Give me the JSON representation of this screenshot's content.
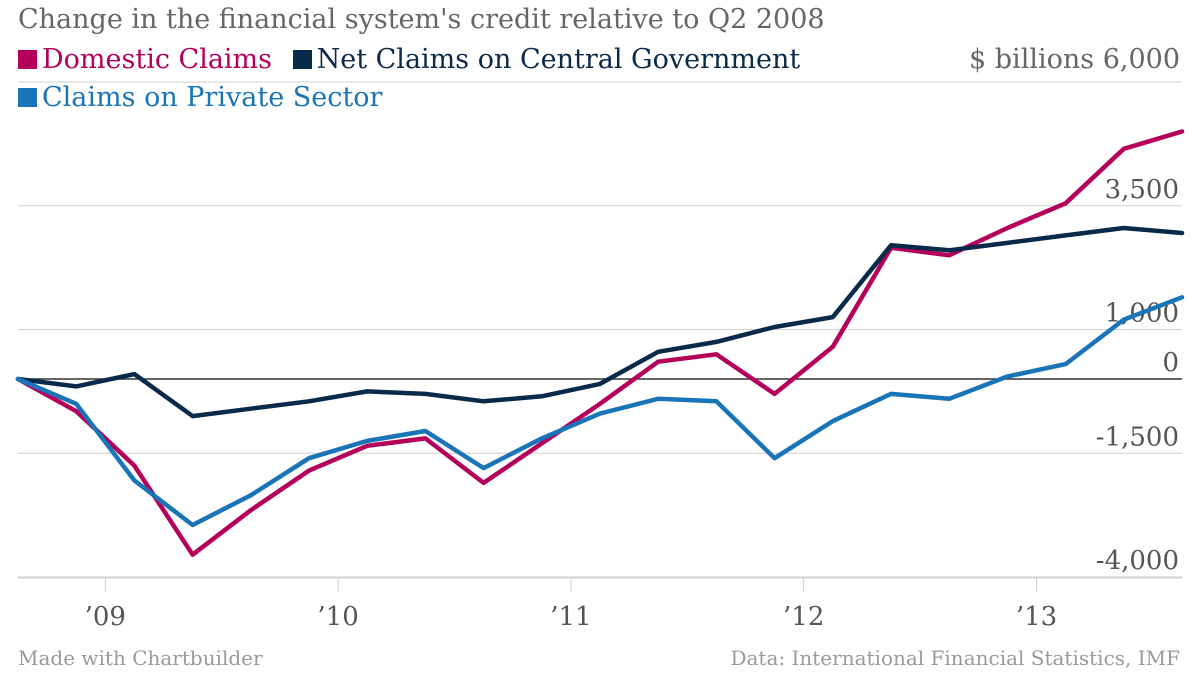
{
  "chart_data": {
    "type": "line",
    "title": "Change in the financial system's credit relative to Q2 2008",
    "unit_label": "$ billions",
    "x_ticks": [
      {
        "label": "’09",
        "t": 1.5
      },
      {
        "label": "’10",
        "t": 5.5
      },
      {
        "label": "’11",
        "t": 9.5
      },
      {
        "label": "’12",
        "t": 13.5
      },
      {
        "label": "’13",
        "t": 17.5
      }
    ],
    "y_ticks": [
      {
        "label": "6,000",
        "value": 6000
      },
      {
        "label": "3,500",
        "value": 3500
      },
      {
        "label": "1,000",
        "value": 1000
      },
      {
        "label": "0",
        "value": 0
      },
      {
        "label": "-1,500",
        "value": -1500
      },
      {
        "label": "-4,000",
        "value": -4000
      }
    ],
    "ylim": [
      -4000,
      6000
    ],
    "grid": true,
    "legend_position": "top-left",
    "series": [
      {
        "name": "Domestic Claims",
        "color": "#b5005b",
        "values": [
          0,
          -650,
          -1750,
          -3550,
          -2650,
          -1850,
          -1350,
          -1200,
          -2100,
          -1300,
          -500,
          350,
          500,
          -300,
          650,
          2650,
          2500,
          3050,
          3550,
          4650,
          5000
        ]
      },
      {
        "name": "Net Claims on Central Government",
        "color": "#0a2a4a",
        "values": [
          0,
          -150,
          100,
          -750,
          -600,
          -450,
          -250,
          -300,
          -450,
          -350,
          -100,
          550,
          750,
          1050,
          1250,
          2700,
          2600,
          2750,
          2900,
          3050,
          2950
        ]
      },
      {
        "name": "Claims on Private Sector",
        "color": "#1a74b8",
        "values": [
          0,
          -500,
          -2050,
          -2950,
          -2350,
          -1600,
          -1250,
          -1050,
          -1800,
          -1200,
          -700,
          -400,
          -450,
          -1600,
          -850,
          -300,
          -400,
          50,
          300,
          1200,
          1650
        ]
      }
    ]
  },
  "footer": {
    "left": "Made with Chartbuilder",
    "right": "Data: International Financial Statistics, IMF"
  }
}
